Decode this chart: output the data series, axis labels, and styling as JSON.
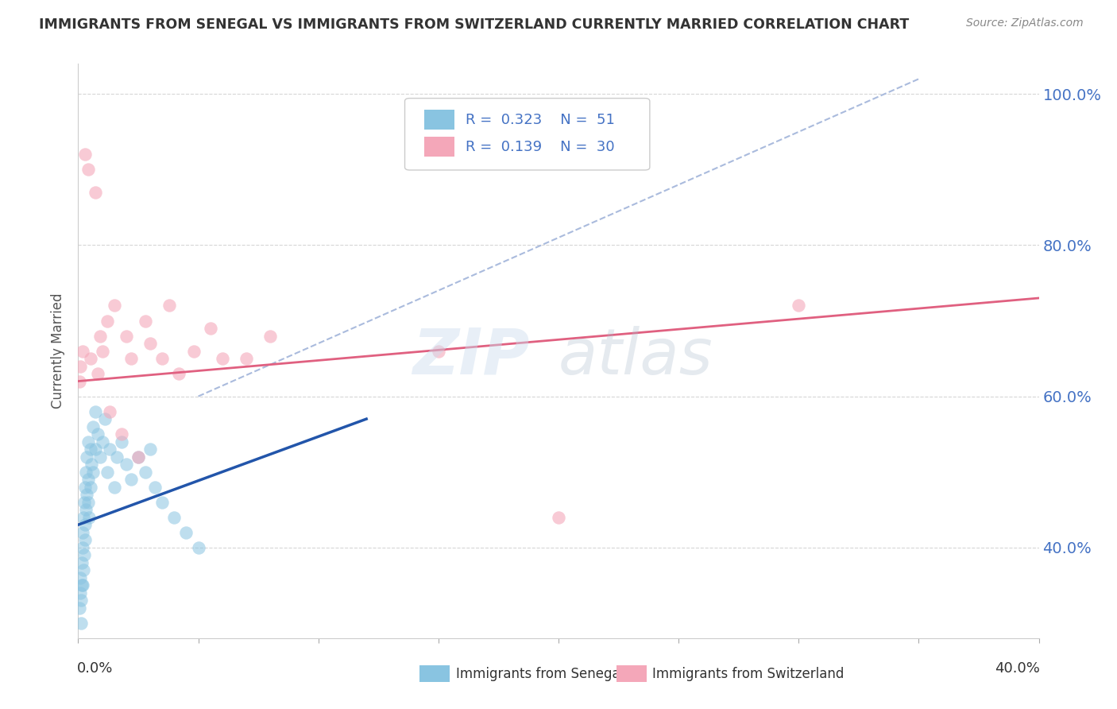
{
  "title": "IMMIGRANTS FROM SENEGAL VS IMMIGRANTS FROM SWITZERLAND CURRENTLY MARRIED CORRELATION CHART",
  "source": "Source: ZipAtlas.com",
  "xlabel_bottom_left": "0.0%",
  "xlabel_bottom_right": "40.0%",
  "ylabel": "Currently Married",
  "xlim": [
    0.0,
    0.4
  ],
  "ylim": [
    0.28,
    1.04
  ],
  "yticks": [
    0.4,
    0.6,
    0.8,
    1.0
  ],
  "ytick_labels": [
    "40.0%",
    "60.0%",
    "80.0%",
    "100.0%"
  ],
  "legend_line1": "R = 0.323   N = 51",
  "legend_line2": "R = 0.139   N = 30",
  "color_senegal": "#89c4e1",
  "color_switzerland": "#f4a7b9",
  "color_senegal_line": "#2255aa",
  "color_switzerland_line": "#e06080",
  "color_ref_line": "#aabbdd",
  "background_color": "#ffffff",
  "grid_color": "#cccccc",
  "watermark_zip": "ZIP",
  "watermark_atlas": "atlas",
  "senegal_x": [
    0.0005,
    0.0008,
    0.001,
    0.0012,
    0.0013,
    0.0015,
    0.0016,
    0.0018,
    0.002,
    0.002,
    0.0022,
    0.0023,
    0.0025,
    0.0026,
    0.0028,
    0.003,
    0.003,
    0.0032,
    0.0033,
    0.0035,
    0.0036,
    0.004,
    0.004,
    0.0042,
    0.0045,
    0.005,
    0.005,
    0.0055,
    0.006,
    0.006,
    0.007,
    0.007,
    0.008,
    0.009,
    0.01,
    0.011,
    0.012,
    0.013,
    0.015,
    0.016,
    0.018,
    0.02,
    0.022,
    0.025,
    0.028,
    0.03,
    0.032,
    0.035,
    0.04,
    0.045,
    0.05
  ],
  "senegal_y": [
    0.32,
    0.34,
    0.36,
    0.3,
    0.33,
    0.35,
    0.38,
    0.4,
    0.42,
    0.35,
    0.37,
    0.44,
    0.46,
    0.39,
    0.41,
    0.48,
    0.43,
    0.5,
    0.45,
    0.52,
    0.47,
    0.54,
    0.49,
    0.46,
    0.44,
    0.53,
    0.48,
    0.51,
    0.56,
    0.5,
    0.58,
    0.53,
    0.55,
    0.52,
    0.54,
    0.57,
    0.5,
    0.53,
    0.48,
    0.52,
    0.54,
    0.51,
    0.49,
    0.52,
    0.5,
    0.53,
    0.48,
    0.46,
    0.44,
    0.42,
    0.4
  ],
  "switzerland_x": [
    0.0005,
    0.001,
    0.002,
    0.003,
    0.004,
    0.005,
    0.007,
    0.008,
    0.009,
    0.01,
    0.012,
    0.013,
    0.015,
    0.018,
    0.02,
    0.022,
    0.025,
    0.028,
    0.03,
    0.035,
    0.038,
    0.042,
    0.048,
    0.055,
    0.06,
    0.07,
    0.08,
    0.15,
    0.2,
    0.3
  ],
  "switzerland_y": [
    0.62,
    0.64,
    0.66,
    0.92,
    0.9,
    0.65,
    0.87,
    0.63,
    0.68,
    0.66,
    0.7,
    0.58,
    0.72,
    0.55,
    0.68,
    0.65,
    0.52,
    0.7,
    0.67,
    0.65,
    0.72,
    0.63,
    0.66,
    0.69,
    0.65,
    0.65,
    0.68,
    0.66,
    0.44,
    0.72
  ],
  "senegal_trend_x": [
    0.0,
    0.12
  ],
  "senegal_trend_y": [
    0.43,
    0.57
  ],
  "switzerland_trend_x": [
    0.0,
    0.4
  ],
  "switzerland_trend_y": [
    0.62,
    0.73
  ],
  "ref_line_x": [
    0.05,
    0.35
  ],
  "ref_line_y": [
    0.6,
    1.02
  ]
}
